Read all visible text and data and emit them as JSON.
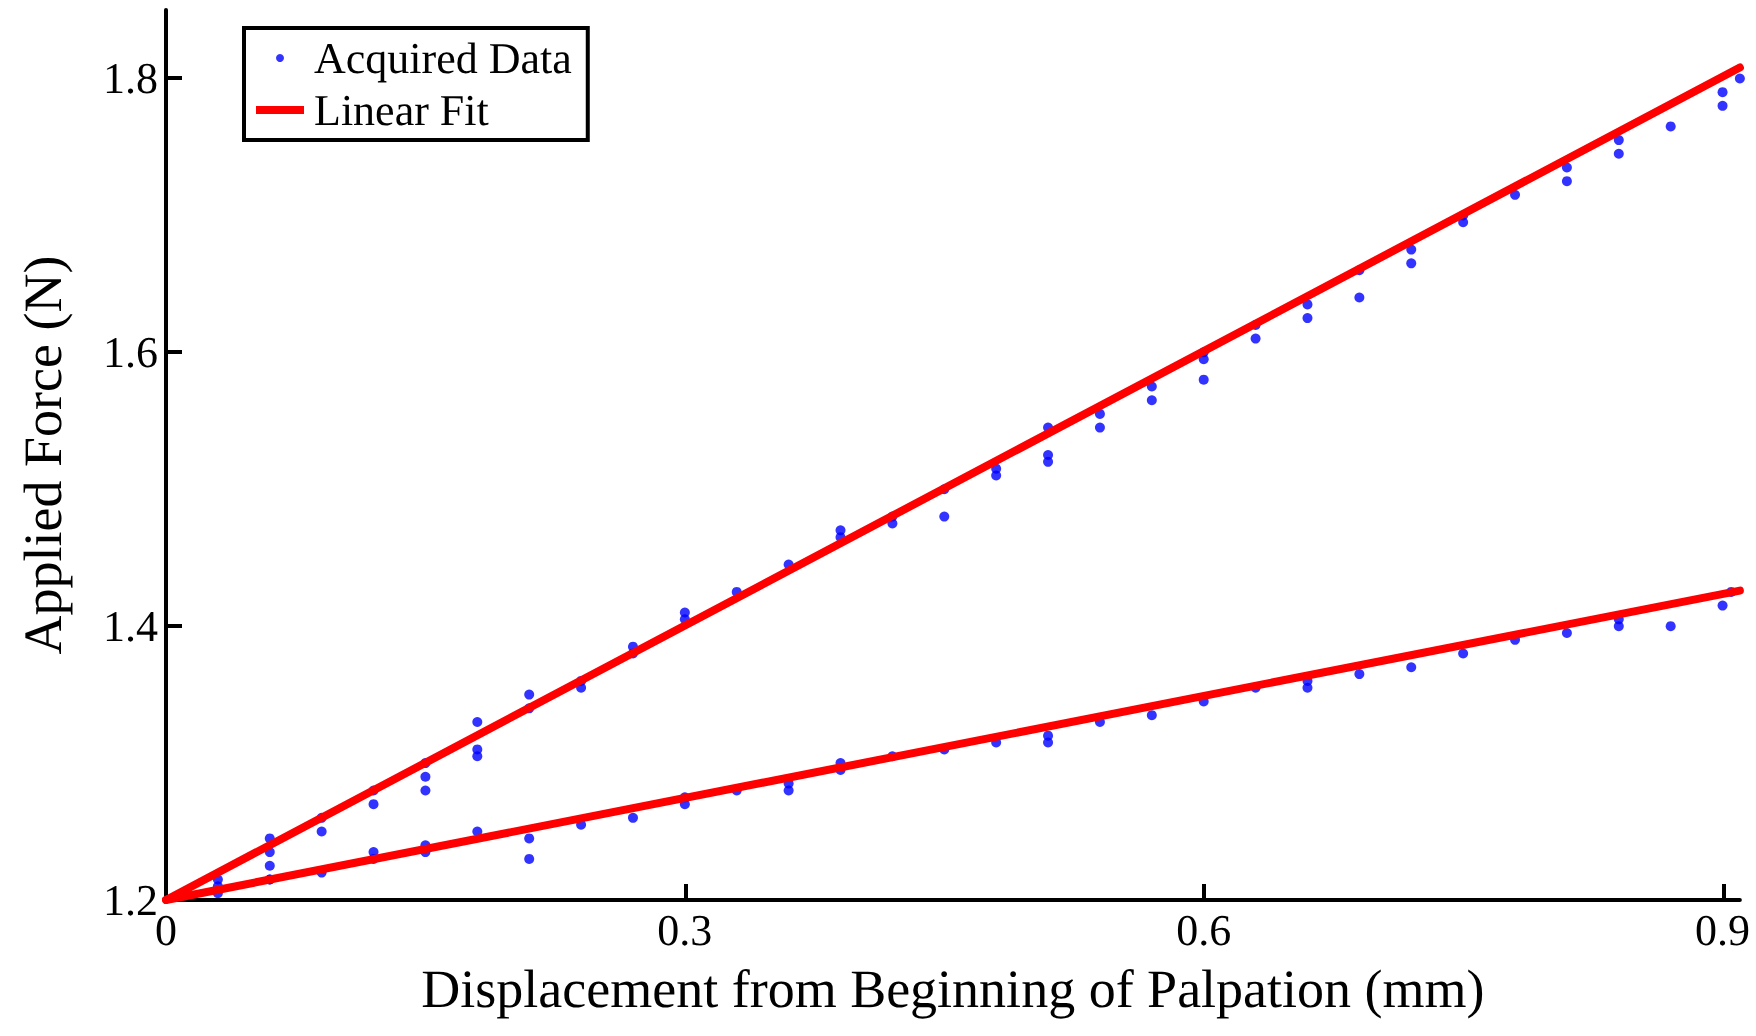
{
  "chart_data": {
    "type": "scatter",
    "xlabel": "Displacement from Beginning of Palpation (mm)",
    "ylabel": "Applied Force (N)",
    "xlim": [
      0,
      0.91
    ],
    "xticks": [
      0,
      0.3,
      0.6,
      0.9
    ],
    "ylim": [
      1.2,
      1.85
    ],
    "yticks": [
      1.2,
      1.4,
      1.6,
      1.8
    ],
    "grid": false,
    "legend": "top left",
    "marker": "circle",
    "series": [
      {
        "name": "Acquired Data",
        "color": "#0000ff",
        "x": [
          0.03,
          0.03,
          0.06,
          0.06,
          0.06,
          0.06,
          0.09,
          0.09,
          0.12,
          0.12,
          0.15,
          0.15,
          0.15,
          0.18,
          0.18,
          0.18,
          0.21,
          0.21,
          0.24,
          0.24,
          0.27,
          0.27,
          0.3,
          0.3,
          0.33,
          0.36,
          0.39,
          0.39,
          0.42,
          0.42,
          0.45,
          0.45,
          0.48,
          0.48,
          0.51,
          0.51,
          0.51,
          0.54,
          0.54,
          0.57,
          0.57,
          0.6,
          0.6,
          0.6,
          0.63,
          0.63,
          0.66,
          0.66,
          0.69,
          0.69,
          0.72,
          0.72,
          0.75,
          0.75,
          0.78,
          0.81,
          0.81,
          0.84,
          0.84,
          0.87,
          0.9,
          0.9,
          0.91,
          0.03,
          0.06,
          0.09,
          0.12,
          0.12,
          0.15,
          0.15,
          0.18,
          0.21,
          0.21,
          0.24,
          0.27,
          0.3,
          0.3,
          0.33,
          0.36,
          0.36,
          0.39,
          0.39,
          0.42,
          0.45,
          0.48,
          0.51,
          0.51,
          0.54,
          0.57,
          0.6,
          0.63,
          0.66,
          0.66,
          0.69,
          0.72,
          0.75,
          0.78,
          0.81,
          0.84,
          0.84,
          0.87,
          0.9,
          0.905
        ],
        "values": [
          1.21,
          1.215,
          1.245,
          1.235,
          1.225,
          1.215,
          1.26,
          1.25,
          1.28,
          1.27,
          1.3,
          1.29,
          1.28,
          1.33,
          1.31,
          1.305,
          1.35,
          1.34,
          1.36,
          1.355,
          1.385,
          1.38,
          1.41,
          1.405,
          1.425,
          1.445,
          1.47,
          1.465,
          1.48,
          1.475,
          1.5,
          1.48,
          1.515,
          1.51,
          1.545,
          1.525,
          1.52,
          1.555,
          1.545,
          1.575,
          1.565,
          1.6,
          1.595,
          1.58,
          1.62,
          1.61,
          1.635,
          1.625,
          1.66,
          1.64,
          1.675,
          1.665,
          1.7,
          1.695,
          1.715,
          1.735,
          1.725,
          1.755,
          1.745,
          1.765,
          1.79,
          1.78,
          1.8,
          1.205,
          1.215,
          1.22,
          1.235,
          1.23,
          1.24,
          1.235,
          1.25,
          1.245,
          1.23,
          1.255,
          1.26,
          1.275,
          1.27,
          1.28,
          1.285,
          1.28,
          1.3,
          1.295,
          1.305,
          1.31,
          1.315,
          1.32,
          1.315,
          1.33,
          1.335,
          1.345,
          1.355,
          1.36,
          1.355,
          1.365,
          1.37,
          1.38,
          1.39,
          1.395,
          1.405,
          1.4,
          1.4,
          1.415,
          1.425
        ]
      },
      {
        "name": "Linear Fit",
        "type": "line",
        "color": "#ff0000",
        "marker": "none",
        "line_style": "solid",
        "x": [
          0,
          0.91
        ],
        "values": [
          1.2,
          1.808
        ]
      },
      {
        "type": "line",
        "color": "#ff0000",
        "marker": "none",
        "line_style": "solid",
        "x": [
          0,
          0.91
        ],
        "values": [
          1.2,
          1.426
        ]
      }
    ]
  }
}
